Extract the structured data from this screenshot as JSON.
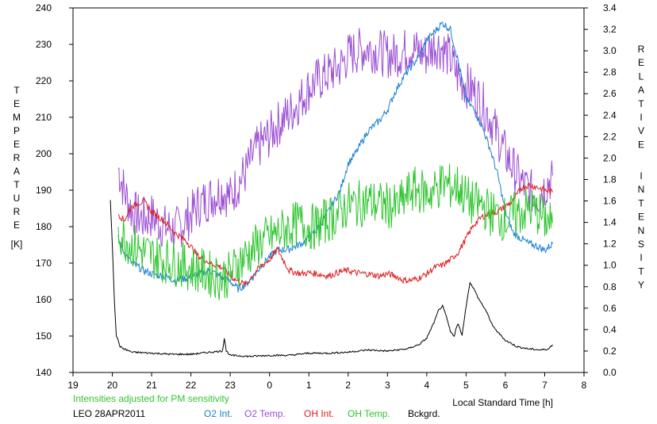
{
  "chart_data": {
    "type": "line",
    "title": "",
    "station": "LEO 28APR2011",
    "note": "Intensities adjusted for PM sensitivity",
    "xlabel": "Local Standard Time [h]",
    "ylabel_left": "TEMPERATURE",
    "ylabel_left_unit": "[K]",
    "ylabel_right": "RELATIVE INTENSITY",
    "x_ticks": [
      "19",
      "20",
      "21",
      "22",
      "23",
      "0",
      "1",
      "2",
      "3",
      "4",
      "5",
      "6",
      "7",
      "8"
    ],
    "ylim_left": [
      140,
      240
    ],
    "y_ticks_left": [
      "140",
      "150",
      "160",
      "170",
      "180",
      "190",
      "200",
      "210",
      "220",
      "230",
      "240"
    ],
    "ylim_right": [
      0.0,
      3.4
    ],
    "y_ticks_right": [
      "0.0",
      "0.2",
      "0.4",
      "0.6",
      "0.8",
      "1.0",
      "1.2",
      "1.4",
      "1.6",
      "1.8",
      "2.0",
      "2.2",
      "2.4",
      "2.6",
      "2.8",
      "3.0",
      "3.2",
      "3.4"
    ],
    "grid": false,
    "legend_position": "bottom",
    "series": [
      {
        "name": "O2 Int.",
        "color": "#1a7fd4",
        "axis": "right",
        "x": [
          20.15,
          20.3,
          20.5,
          20.8,
          21.0,
          21.3,
          21.6,
          21.9,
          22.2,
          22.5,
          22.8,
          23.0,
          23.2,
          23.4,
          23.6,
          23.8,
          24.0,
          24.2,
          24.5,
          24.8,
          25.0,
          25.2,
          25.5,
          25.8,
          26.0,
          26.2,
          26.5,
          26.8,
          27.0,
          27.2,
          27.4,
          27.6,
          27.8,
          28.0,
          28.2,
          28.4,
          28.6,
          28.8,
          29.0,
          29.2,
          29.4,
          29.6,
          29.8,
          30.0,
          30.2,
          30.4,
          30.6,
          30.8,
          31.0,
          31.2
        ],
        "values": [
          1.25,
          1.12,
          1.02,
          0.95,
          0.92,
          0.9,
          0.86,
          0.88,
          0.92,
          0.95,
          0.88,
          0.85,
          0.78,
          0.82,
          0.9,
          1.0,
          1.08,
          1.14,
          1.15,
          1.2,
          1.25,
          1.33,
          1.5,
          1.7,
          1.95,
          2.05,
          2.25,
          2.35,
          2.45,
          2.62,
          2.75,
          2.85,
          2.95,
          3.1,
          3.18,
          3.26,
          3.2,
          2.9,
          2.55,
          2.45,
          2.3,
          2.1,
          1.85,
          1.5,
          1.3,
          1.25,
          1.2,
          1.18,
          1.14,
          1.2
        ]
      },
      {
        "name": "O2 Temp.",
        "color": "#9b4ed4",
        "axis": "left",
        "x": [
          20.15,
          20.3,
          20.5,
          20.8,
          21.0,
          21.3,
          21.6,
          21.9,
          22.2,
          22.5,
          22.8,
          23.0,
          23.2,
          23.4,
          23.6,
          23.8,
          24.0,
          24.2,
          24.5,
          24.8,
          25.0,
          25.2,
          25.5,
          25.8,
          26.0,
          26.2,
          26.5,
          26.8,
          27.0,
          27.2,
          27.4,
          27.6,
          27.8,
          28.0,
          28.2,
          28.4,
          28.6,
          28.8,
          29.0,
          29.2,
          29.4,
          29.6,
          29.8,
          30.0,
          30.2,
          30.4,
          30.6,
          30.8,
          31.0,
          31.2
        ],
        "values": [
          196,
          190,
          184,
          182,
          183,
          180,
          179,
          182,
          186,
          188,
          190,
          188,
          192,
          195,
          200,
          203,
          205,
          208,
          211,
          215,
          218,
          220,
          222,
          224,
          227,
          228,
          229,
          228,
          227,
          227,
          228,
          229,
          228,
          227,
          230,
          229,
          226,
          221,
          219,
          217,
          214,
          210,
          205,
          200,
          196,
          192,
          190,
          188,
          191,
          194
        ]
      },
      {
        "name": "OH Int.",
        "color": "#e01b1b",
        "axis": "right",
        "x": [
          20.15,
          20.3,
          20.5,
          20.8,
          21.0,
          21.3,
          21.6,
          21.9,
          22.2,
          22.5,
          22.8,
          23.0,
          23.2,
          23.4,
          23.6,
          23.8,
          24.0,
          24.2,
          24.5,
          24.8,
          25.0,
          25.2,
          25.5,
          25.8,
          26.0,
          26.2,
          26.5,
          26.8,
          27.0,
          27.2,
          27.4,
          27.6,
          27.8,
          28.0,
          28.2,
          28.4,
          28.6,
          28.8,
          29.0,
          29.2,
          29.4,
          29.6,
          29.8,
          30.0,
          30.2,
          30.4,
          30.6,
          30.8,
          31.0,
          31.2
        ],
        "values": [
          1.48,
          1.42,
          1.55,
          1.6,
          1.5,
          1.42,
          1.3,
          1.22,
          1.08,
          1.02,
          0.98,
          0.9,
          0.85,
          0.82,
          0.92,
          1.0,
          1.05,
          1.15,
          0.95,
          0.92,
          0.93,
          0.92,
          0.9,
          0.94,
          0.95,
          0.93,
          0.92,
          0.9,
          0.92,
          0.9,
          0.86,
          0.86,
          0.88,
          0.92,
          0.98,
          1.0,
          1.05,
          1.12,
          1.25,
          1.38,
          1.45,
          1.48,
          1.5,
          1.55,
          1.6,
          1.72,
          1.75,
          1.73,
          1.7,
          1.68
        ]
      },
      {
        "name": "OH Temp.",
        "color": "#2ec52e",
        "axis": "left",
        "x": [
          20.15,
          20.3,
          20.5,
          20.8,
          21.0,
          21.3,
          21.6,
          21.9,
          22.2,
          22.5,
          22.8,
          23.0,
          23.2,
          23.4,
          23.6,
          23.8,
          24.0,
          24.2,
          24.5,
          24.8,
          25.0,
          25.2,
          25.5,
          25.8,
          26.0,
          26.2,
          26.5,
          26.8,
          27.0,
          27.2,
          27.4,
          27.6,
          27.8,
          28.0,
          28.2,
          28.4,
          28.6,
          28.8,
          29.0,
          29.2,
          29.4,
          29.6,
          29.8,
          30.0,
          30.2,
          30.4,
          30.6,
          30.8,
          31.0,
          31.2
        ],
        "values": [
          179,
          177,
          175,
          173,
          172,
          171,
          170,
          169,
          168,
          167,
          166,
          167,
          170,
          172,
          174,
          176,
          177,
          178,
          180,
          181,
          180,
          180,
          182,
          184,
          186,
          186,
          187,
          186,
          186,
          185,
          187,
          190,
          190,
          189,
          190,
          192,
          191,
          191,
          188,
          186,
          186,
          184,
          183,
          182,
          183,
          184,
          185,
          184,
          182,
          181
        ]
      },
      {
        "name": "Bckgrd.",
        "color": "#000000",
        "axis": "right",
        "x": [
          19.95,
          20.0,
          20.05,
          20.1,
          20.2,
          20.3,
          20.5,
          21.0,
          21.5,
          22.0,
          22.5,
          22.8,
          22.85,
          22.9,
          23.0,
          23.5,
          24.0,
          24.5,
          25.0,
          25.5,
          26.0,
          26.5,
          27.0,
          27.5,
          27.8,
          28.0,
          28.2,
          28.3,
          28.4,
          28.5,
          28.6,
          28.7,
          28.75,
          28.8,
          28.9,
          29.0,
          29.1,
          29.2,
          29.3,
          29.5,
          29.7,
          30.0,
          30.3,
          30.6,
          30.9,
          31.1,
          31.2
        ],
        "values": [
          1.6,
          1.2,
          0.7,
          0.35,
          0.24,
          0.22,
          0.19,
          0.18,
          0.17,
          0.17,
          0.19,
          0.2,
          0.32,
          0.2,
          0.16,
          0.15,
          0.16,
          0.16,
          0.18,
          0.18,
          0.19,
          0.21,
          0.2,
          0.22,
          0.26,
          0.32,
          0.48,
          0.58,
          0.62,
          0.52,
          0.38,
          0.34,
          0.42,
          0.45,
          0.35,
          0.62,
          0.84,
          0.78,
          0.7,
          0.58,
          0.42,
          0.3,
          0.24,
          0.22,
          0.21,
          0.22,
          0.26
        ]
      }
    ]
  }
}
